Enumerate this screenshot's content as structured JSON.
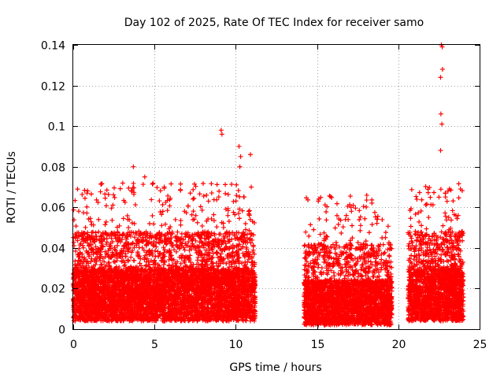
{
  "chart_data": {
    "type": "scatter",
    "title": "Day 102 of 2025, Rate Of TEC Index for receiver samo",
    "xlabel": "GPS time / hours",
    "ylabel": "ROTI / TECUs",
    "xlim": [
      0,
      25
    ],
    "ylim": [
      0,
      0.14
    ],
    "x_ticks": [
      0,
      5,
      10,
      15,
      20,
      25
    ],
    "x_tick_labels": [
      "0",
      "5",
      "10",
      "15",
      "20",
      "25"
    ],
    "y_ticks": [
      0,
      0.02,
      0.04,
      0.06,
      0.08,
      0.1,
      0.12,
      0.14
    ],
    "y_tick_labels": [
      "0",
      "0.02",
      "0.04",
      "0.06",
      "0.08",
      "0.1",
      "0.12",
      "0.14"
    ],
    "grid": true,
    "marker": "+",
    "marker_color": "#ff0000",
    "segments": [
      {
        "x_start": 0.0,
        "x_end": 11.2,
        "y_base_low": 0.004,
        "y_base_high": 0.03
      },
      {
        "x_start": 14.2,
        "x_end": 19.6,
        "y_base_low": 0.002,
        "y_base_high": 0.024
      },
      {
        "x_start": 20.6,
        "x_end": 24.0,
        "y_base_low": 0.004,
        "y_base_high": 0.03
      }
    ],
    "notable_points": [
      {
        "x": 9.1,
        "y": 0.098
      },
      {
        "x": 9.15,
        "y": 0.096
      },
      {
        "x": 10.2,
        "y": 0.09
      },
      {
        "x": 10.3,
        "y": 0.085
      },
      {
        "x": 10.25,
        "y": 0.08
      },
      {
        "x": 10.9,
        "y": 0.086
      },
      {
        "x": 10.95,
        "y": 0.07
      },
      {
        "x": 3.7,
        "y": 0.08
      },
      {
        "x": 3.6,
        "y": 0.068
      },
      {
        "x": 4.4,
        "y": 0.075
      },
      {
        "x": 5.6,
        "y": 0.07
      },
      {
        "x": 7.2,
        "y": 0.067
      },
      {
        "x": 8.2,
        "y": 0.066
      },
      {
        "x": 0.85,
        "y": 0.067
      },
      {
        "x": 16.8,
        "y": 0.056
      },
      {
        "x": 16.75,
        "y": 0.054
      },
      {
        "x": 19.0,
        "y": 0.045
      },
      {
        "x": 15.1,
        "y": 0.042
      },
      {
        "x": 22.65,
        "y": 0.14
      },
      {
        "x": 22.7,
        "y": 0.139
      },
      {
        "x": 22.72,
        "y": 0.128
      },
      {
        "x": 22.6,
        "y": 0.124
      },
      {
        "x": 22.62,
        "y": 0.106
      },
      {
        "x": 22.68,
        "y": 0.101
      },
      {
        "x": 22.6,
        "y": 0.088
      },
      {
        "x": 22.9,
        "y": 0.067
      },
      {
        "x": 22.5,
        "y": 0.065
      },
      {
        "x": 23.0,
        "y": 0.063
      },
      {
        "x": 23.1,
        "y": 0.055
      },
      {
        "x": 21.3,
        "y": 0.046
      }
    ]
  }
}
